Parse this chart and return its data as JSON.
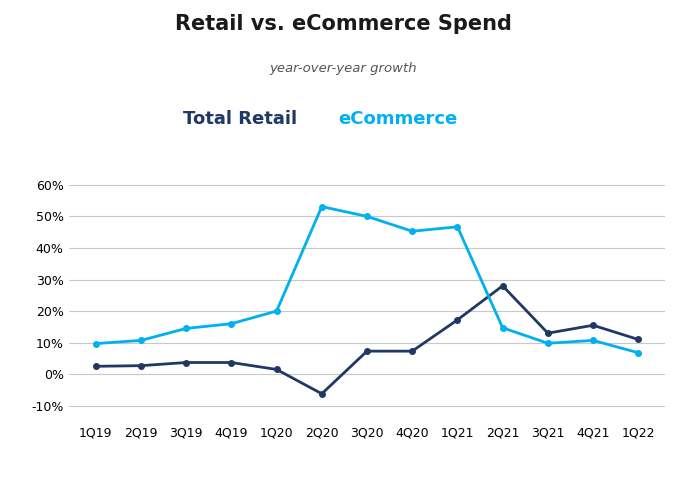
{
  "title": "Retail vs. eCommerce Spend",
  "subtitle": "year-over-year growth",
  "legend_retail": "Total Retail",
  "legend_ecommerce": "eCommerce",
  "categories": [
    "1Q19",
    "2Q19",
    "3Q19",
    "4Q19",
    "1Q20",
    "2Q20",
    "3Q20",
    "4Q20",
    "1Q21",
    "2Q21",
    "3Q21",
    "4Q21",
    "1Q22"
  ],
  "total_retail": [
    0.025,
    0.027,
    0.037,
    0.037,
    0.015,
    -0.062,
    0.073,
    0.073,
    0.172,
    0.28,
    0.13,
    0.155,
    0.11
  ],
  "ecommerce": [
    0.097,
    0.107,
    0.145,
    0.16,
    0.2,
    0.531,
    0.5,
    0.453,
    0.467,
    0.147,
    0.098,
    0.107,
    0.068
  ],
  "retail_color": "#1f3864",
  "ecommerce_color": "#00b0f0",
  "background_color": "#ffffff",
  "grid_color": "#c8c8c8",
  "ylim": [
    -0.15,
    0.7
  ],
  "yticks": [
    -0.1,
    0.0,
    0.1,
    0.2,
    0.3,
    0.4,
    0.5,
    0.6
  ],
  "title_fontsize": 15,
  "subtitle_fontsize": 9.5,
  "legend_fontsize": 13,
  "axis_label_fontsize": 9
}
